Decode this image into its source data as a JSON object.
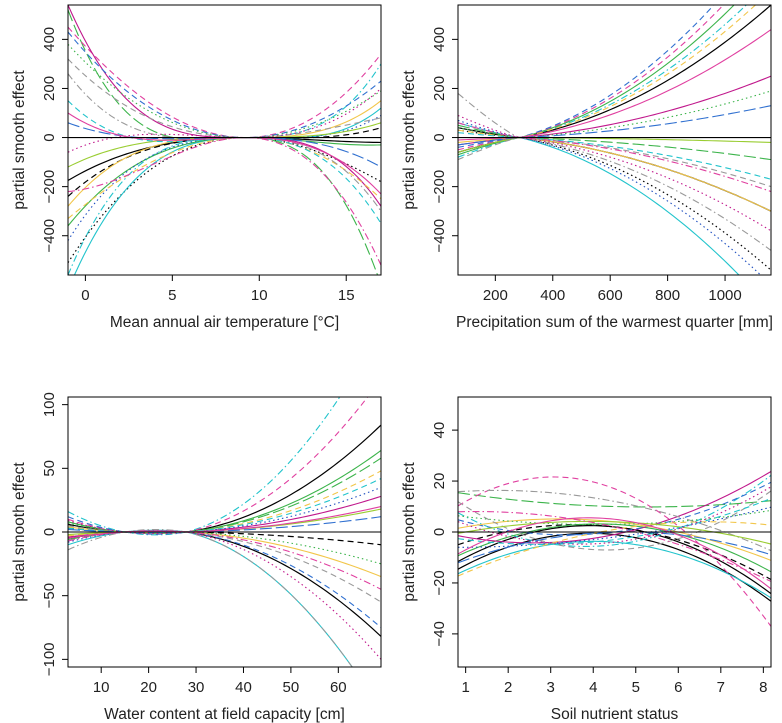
{
  "chart_data": [
    {
      "type": "line",
      "xlabel": "Mean annual air temperature [°C]",
      "ylabel": "partial smooth effect",
      "xlim": [
        -1,
        17
      ],
      "ylim": [
        -560,
        540
      ],
      "xticks": [
        0,
        5,
        10,
        15
      ],
      "yticks": [
        -400,
        -200,
        0,
        200,
        400
      ],
      "reference_line": 0,
      "curve_family": "quadratic",
      "pivot_x": 9.2,
      "series": [
        {
          "style": "solid",
          "color": "#000000",
          "values": [
            -175,
            -20
          ]
        },
        {
          "style": "dashed",
          "color": "#000000",
          "values": [
            -240,
            40
          ]
        },
        {
          "style": "dotted",
          "color": "#000000",
          "values": [
            -510,
            -180
          ]
        },
        {
          "style": "solid",
          "color": "#22c4cc",
          "values": [
            -620,
            120
          ]
        },
        {
          "style": "dashdot",
          "color": "#22c4cc",
          "values": [
            -560,
            300
          ]
        },
        {
          "style": "solid",
          "color": "#3cb44b",
          "values": [
            -360,
            -30
          ]
        },
        {
          "style": "longdash",
          "color": "#3cb44b",
          "values": [
            520,
            -600
          ]
        },
        {
          "style": "dashed",
          "color": "#e040a0",
          "values": [
            450,
            340
          ]
        },
        {
          "style": "solid",
          "color": "#c0188c",
          "values": [
            540,
            -280
          ]
        },
        {
          "style": "dashed",
          "color": "#3070d0",
          "values": [
            430,
            230
          ]
        },
        {
          "style": "dotted",
          "color": "#2050c0",
          "values": [
            -420,
            90
          ]
        },
        {
          "style": "solid",
          "color": "#f2c64a",
          "values": [
            -280,
            150
          ]
        },
        {
          "style": "dashed",
          "color": "#f2c64a",
          "values": [
            -330,
            -250
          ]
        },
        {
          "style": "dashdot",
          "color": "#999999",
          "values": [
            260,
            -300
          ]
        },
        {
          "style": "dashed",
          "color": "#999999",
          "values": [
            320,
            80
          ]
        },
        {
          "style": "dotted",
          "color": "#3cb44b",
          "values": [
            380,
            190
          ]
        },
        {
          "style": "solid",
          "color": "#9acd32",
          "values": [
            -120,
            60
          ]
        },
        {
          "style": "dashed",
          "color": "#22c4cc",
          "values": [
            150,
            -350
          ]
        },
        {
          "style": "dashdot",
          "color": "#e040a0",
          "values": [
            -220,
            -520
          ]
        },
        {
          "style": "longdash",
          "color": "#3070d0",
          "values": [
            60,
            -120
          ]
        },
        {
          "style": "dotted",
          "color": "#c0188c",
          "values": [
            -60,
            200
          ]
        },
        {
          "style": "solid",
          "color": "#e040a0",
          "values": [
            100,
            -230
          ]
        }
      ]
    },
    {
      "type": "line",
      "xlabel": "Precipitation sum of the warmest quarter [mm]",
      "ylabel": "partial smooth effect",
      "xlim": [
        70,
        1160
      ],
      "ylim": [
        -560,
        540
      ],
      "xticks": [
        200,
        400,
        600,
        800,
        1000
      ],
      "yticks": [
        -400,
        -200,
        0,
        200,
        400
      ],
      "reference_line": 0,
      "curve_family": "smooth-through-pivot",
      "pivot_x": 285,
      "series": [
        {
          "style": "solid",
          "color": "#000000",
          "values": [
            -60,
            540
          ]
        },
        {
          "style": "solid",
          "color": "#000000",
          "values": [
            40,
            -300
          ]
        },
        {
          "style": "dotted",
          "color": "#000000",
          "values": [
            30,
            -540
          ]
        },
        {
          "style": "solid",
          "color": "#22c4cc",
          "values": [
            60,
            -700
          ]
        },
        {
          "style": "dashdot",
          "color": "#22c4cc",
          "values": [
            -80,
            640
          ]
        },
        {
          "style": "solid",
          "color": "#3cb44b",
          "values": [
            -70,
            700
          ]
        },
        {
          "style": "longdash",
          "color": "#3cb44b",
          "values": [
            50,
            -90
          ]
        },
        {
          "style": "dashed",
          "color": "#e040a0",
          "values": [
            -50,
            760
          ]
        },
        {
          "style": "solid",
          "color": "#c0188c",
          "values": [
            -30,
            250
          ]
        },
        {
          "style": "dashed",
          "color": "#3070d0",
          "values": [
            -40,
            820
          ]
        },
        {
          "style": "dotted",
          "color": "#2050c0",
          "values": [
            70,
            -600
          ]
        },
        {
          "style": "solid",
          "color": "#f2c64a",
          "values": [
            -20,
            -300
          ]
        },
        {
          "style": "dashed",
          "color": "#f2c64a",
          "values": [
            30,
            600
          ]
        },
        {
          "style": "dashdot",
          "color": "#999999",
          "values": [
            180,
            -460
          ]
        },
        {
          "style": "dashed",
          "color": "#999999",
          "values": [
            -90,
            -200
          ]
        },
        {
          "style": "dotted",
          "color": "#3cb44b",
          "values": [
            40,
            190
          ]
        },
        {
          "style": "solid",
          "color": "#9acd32",
          "values": [
            -60,
            -20
          ]
        },
        {
          "style": "dashed",
          "color": "#22c4cc",
          "values": [
            20,
            -170
          ]
        },
        {
          "style": "dashdot",
          "color": "#e040a0",
          "values": [
            60,
            -220
          ]
        },
        {
          "style": "longdash",
          "color": "#3070d0",
          "values": [
            -30,
            130
          ]
        },
        {
          "style": "dotted",
          "color": "#c0188c",
          "values": [
            90,
            -380
          ]
        },
        {
          "style": "solid",
          "color": "#e040a0",
          "values": [
            -10,
            440
          ]
        }
      ]
    },
    {
      "type": "line",
      "xlabel": "Water content at field capacity [cm]",
      "ylabel": "partial smooth effect",
      "xlim": [
        3,
        69
      ],
      "ylim": [
        -106,
        106
      ],
      "xticks": [
        10,
        20,
        30,
        40,
        50,
        60
      ],
      "yticks": [
        -100,
        -50,
        0,
        50,
        100
      ],
      "reference_line": 0,
      "curve_family": "cubic-two-pivots",
      "pivots": [
        15,
        28
      ],
      "series": [
        {
          "style": "solid",
          "color": "#000000",
          "values": [
            6,
            84
          ]
        },
        {
          "style": "solid",
          "color": "#000000",
          "values": [
            -5,
            -82
          ]
        },
        {
          "style": "dashed",
          "color": "#000000",
          "values": [
            3,
            -10
          ]
        },
        {
          "style": "solid",
          "color": "#22c4cc",
          "values": [
            -10,
            -140
          ]
        },
        {
          "style": "dashdot",
          "color": "#22c4cc",
          "values": [
            16,
            160
          ]
        },
        {
          "style": "solid",
          "color": "#3cb44b",
          "values": [
            8,
            64
          ]
        },
        {
          "style": "longdash",
          "color": "#3cb44b",
          "values": [
            -6,
            58
          ]
        },
        {
          "style": "dashed",
          "color": "#e040a0",
          "values": [
            10,
            120
          ]
        },
        {
          "style": "solid",
          "color": "#c0188c",
          "values": [
            -4,
            28
          ]
        },
        {
          "style": "dashed",
          "color": "#3070d0",
          "values": [
            12,
            -75
          ]
        },
        {
          "style": "dotted",
          "color": "#2050c0",
          "values": [
            -8,
            35
          ]
        },
        {
          "style": "solid",
          "color": "#f2c64a",
          "values": [
            4,
            -35
          ]
        },
        {
          "style": "dashed",
          "color": "#f2c64a",
          "values": [
            -3,
            48
          ]
        },
        {
          "style": "dashdot",
          "color": "#999999",
          "values": [
            -14,
            -140
          ]
        },
        {
          "style": "dashed",
          "color": "#999999",
          "values": [
            5,
            -55
          ]
        },
        {
          "style": "dotted",
          "color": "#3cb44b",
          "values": [
            7,
            -25
          ]
        },
        {
          "style": "solid",
          "color": "#9acd32",
          "values": [
            -2,
            18
          ]
        },
        {
          "style": "dashed",
          "color": "#22c4cc",
          "values": [
            3,
            42
          ]
        },
        {
          "style": "dashdot",
          "color": "#e040a0",
          "values": [
            -7,
            -45
          ]
        },
        {
          "style": "longdash",
          "color": "#3070d0",
          "values": [
            2,
            12
          ]
        },
        {
          "style": "dotted",
          "color": "#c0188c",
          "values": [
            9,
            -100
          ]
        },
        {
          "style": "solid",
          "color": "#e040a0",
          "values": [
            -5,
            20
          ]
        }
      ]
    },
    {
      "type": "line",
      "xlabel": "Soil nutrient status",
      "ylabel": "partial smooth effect",
      "xlim": [
        0.82,
        8.18
      ],
      "ylim": [
        -53,
        53
      ],
      "xticks": [
        1,
        2,
        3,
        4,
        5,
        6,
        7,
        8
      ],
      "yticks": [
        -40,
        -20,
        0,
        20,
        40
      ],
      "reference_line": 0,
      "curve_family": "quadratic-3pt",
      "series": [
        {
          "style": "solid",
          "color": "#000000",
          "values": [
            -13,
            -1,
            -25
          ]
        },
        {
          "style": "solid",
          "color": "#000000",
          "values": [
            -10,
            2,
            -22
          ]
        },
        {
          "style": "dashed",
          "color": "#000000",
          "values": [
            -4,
            2,
            -17
          ]
        },
        {
          "style": "solid",
          "color": "#22c4cc",
          "values": [
            -15,
            -4,
            -24
          ]
        },
        {
          "style": "dashdot",
          "color": "#22c4cc",
          "values": [
            6,
            -5,
            20
          ]
        },
        {
          "style": "solid",
          "color": "#3cb44b",
          "values": [
            -8,
            3,
            -14
          ]
        },
        {
          "style": "longdash",
          "color": "#3cb44b",
          "values": [
            15,
            10,
            12
          ]
        },
        {
          "style": "dashed",
          "color": "#e040a0",
          "values": [
            12,
            17,
            -33
          ]
        },
        {
          "style": "solid",
          "color": "#c0188c",
          "values": [
            -2,
            -1,
            22
          ]
        },
        {
          "style": "dashed",
          "color": "#3070d0",
          "values": [
            4,
            0,
            18
          ]
        },
        {
          "style": "dotted",
          "color": "#2050c0",
          "values": [
            -6,
            -2,
            9
          ]
        },
        {
          "style": "solid",
          "color": "#f2c64a",
          "values": [
            2,
            4,
            -10
          ]
        },
        {
          "style": "dashed",
          "color": "#f2c64a",
          "values": [
            -16,
            1,
            3
          ]
        },
        {
          "style": "dashdot",
          "color": "#999999",
          "values": [
            16,
            12,
            -6
          ]
        },
        {
          "style": "dashed",
          "color": "#999999",
          "values": [
            10,
            -7,
            14
          ]
        },
        {
          "style": "dotted",
          "color": "#3cb44b",
          "values": [
            6,
            3,
            8
          ]
        },
        {
          "style": "solid",
          "color": "#9acd32",
          "values": [
            0,
            4,
            -4
          ]
        },
        {
          "style": "dashed",
          "color": "#22c4cc",
          "values": [
            -3,
            -3,
            12
          ]
        },
        {
          "style": "dashdot",
          "color": "#e040a0",
          "values": [
            8,
            2,
            -18
          ]
        },
        {
          "style": "longdash",
          "color": "#3070d0",
          "values": [
            -11,
            0,
            -8
          ]
        },
        {
          "style": "dotted",
          "color": "#c0188c",
          "values": [
            3,
            -4,
            16
          ]
        },
        {
          "style": "solid",
          "color": "#e040a0",
          "values": [
            -7,
            5,
            -20
          ]
        }
      ]
    }
  ]
}
